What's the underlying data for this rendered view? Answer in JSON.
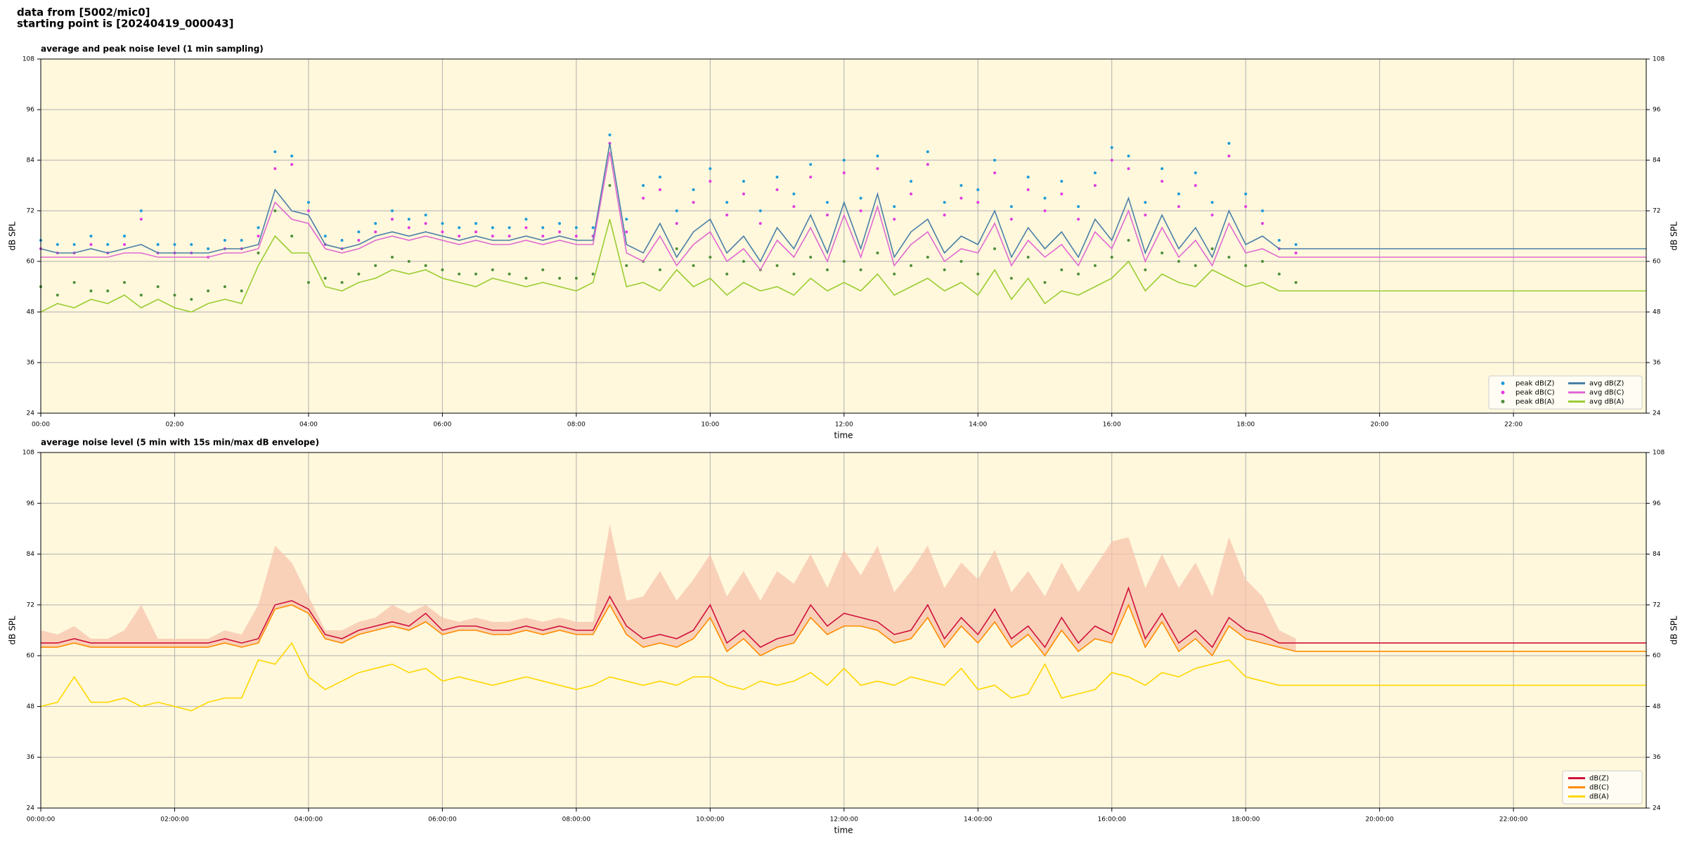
{
  "header": {
    "lines": [
      "data from [5002/mic0]",
      "starting point is [20240419_000043]"
    ]
  },
  "chart_data": [
    {
      "type": "line",
      "title": "average and peak noise level (1 min sampling)",
      "xlabel": "time",
      "ylabel": "dB SPL",
      "xlim": [
        "00:00",
        "23:59"
      ],
      "xticks": [
        "00:00",
        "02:00",
        "04:00",
        "06:00",
        "08:00",
        "10:00",
        "12:00",
        "14:00",
        "16:00",
        "18:00",
        "20:00",
        "22:00"
      ],
      "ylim": [
        24,
        108
      ],
      "yticks": [
        24,
        36,
        48,
        60,
        72,
        84,
        96,
        108
      ],
      "grid": true,
      "legend": "lower right",
      "legend_columns": 2,
      "x": [
        "00:00",
        "00:15",
        "00:30",
        "00:45",
        "01:00",
        "01:15",
        "01:30",
        "01:45",
        "02:00",
        "02:15",
        "02:30",
        "02:45",
        "03:00",
        "03:15",
        "03:30",
        "03:45",
        "04:00",
        "04:15",
        "04:30",
        "04:45",
        "05:00",
        "05:15",
        "05:30",
        "05:45",
        "06:00",
        "06:15",
        "06:30",
        "06:45",
        "07:00",
        "07:15",
        "07:30",
        "07:45",
        "08:00",
        "08:15",
        "08:30",
        "08:45",
        "09:00",
        "09:15",
        "09:30",
        "09:45",
        "10:00",
        "10:15",
        "10:30",
        "10:45",
        "11:00",
        "11:15",
        "11:30",
        "11:45",
        "12:00",
        "12:15",
        "12:30",
        "12:45",
        "13:00",
        "13:15",
        "13:30",
        "13:45",
        "14:00",
        "14:15",
        "14:30",
        "14:45",
        "15:00",
        "15:15",
        "15:30",
        "15:45",
        "16:00",
        "16:15",
        "16:30",
        "16:45",
        "17:00",
        "17:15",
        "17:30",
        "17:45",
        "18:00",
        "18:15",
        "18:30",
        "18:45",
        "23:59"
      ],
      "series": [
        {
          "name": "peak dB(Z)",
          "mark": "dot",
          "color": "#1f9bd8",
          "values": [
            65,
            64,
            64,
            66,
            64,
            66,
            72,
            64,
            64,
            64,
            63,
            65,
            65,
            68,
            86,
            85,
            74,
            66,
            65,
            67,
            69,
            72,
            70,
            71,
            69,
            68,
            69,
            68,
            68,
            70,
            68,
            69,
            68,
            68,
            90,
            70,
            78,
            80,
            72,
            77,
            82,
            74,
            79,
            72,
            80,
            76,
            83,
            74,
            84,
            75,
            85,
            73,
            79,
            86,
            74,
            78,
            77,
            84,
            73,
            80,
            75,
            79,
            73,
            81,
            87,
            85,
            74,
            82,
            76,
            81,
            74,
            88,
            76,
            72,
            65,
            64,
            null
          ]
        },
        {
          "name": "peak dB(C)",
          "mark": "dot",
          "color": "#e03ce0",
          "values": [
            63,
            62,
            62,
            64,
            62,
            64,
            70,
            62,
            62,
            62,
            61,
            63,
            63,
            66,
            82,
            83,
            72,
            64,
            63,
            65,
            67,
            70,
            68,
            69,
            67,
            66,
            67,
            66,
            66,
            68,
            66,
            67,
            66,
            66,
            88,
            67,
            75,
            77,
            69,
            74,
            79,
            71,
            76,
            69,
            77,
            73,
            80,
            71,
            81,
            72,
            82,
            70,
            76,
            83,
            71,
            75,
            74,
            81,
            70,
            77,
            72,
            76,
            70,
            78,
            84,
            82,
            71,
            79,
            73,
            78,
            71,
            85,
            73,
            69,
            63,
            62,
            null
          ]
        },
        {
          "name": "peak dB(A)",
          "mark": "dot",
          "color": "#4f8f3a",
          "values": [
            54,
            52,
            55,
            53,
            53,
            55,
            52,
            54,
            52,
            51,
            53,
            54,
            53,
            62,
            72,
            66,
            55,
            56,
            55,
            57,
            59,
            61,
            60,
            59,
            58,
            57,
            57,
            58,
            57,
            56,
            58,
            56,
            56,
            57,
            78,
            59,
            60,
            58,
            63,
            59,
            61,
            57,
            60,
            58,
            59,
            57,
            61,
            58,
            60,
            58,
            62,
            57,
            59,
            61,
            58,
            60,
            57,
            63,
            56,
            61,
            55,
            58,
            57,
            59,
            61,
            65,
            58,
            62,
            60,
            59,
            63,
            61,
            59,
            60,
            57,
            55,
            null
          ]
        },
        {
          "name": "avg dB(Z)",
          "mark": "line",
          "color": "#4a7fa8",
          "values": [
            63,
            62,
            62,
            63,
            62,
            63,
            64,
            62,
            62,
            62,
            62,
            63,
            63,
            64,
            77,
            72,
            71,
            64,
            63,
            64,
            66,
            67,
            66,
            67,
            66,
            65,
            66,
            65,
            65,
            66,
            65,
            66,
            65,
            65,
            88,
            64,
            62,
            69,
            61,
            67,
            70,
            62,
            66,
            60,
            68,
            63,
            71,
            62,
            74,
            63,
            76,
            61,
            67,
            70,
            62,
            66,
            64,
            72,
            61,
            68,
            63,
            67,
            61,
            70,
            65,
            75,
            62,
            71,
            63,
            68,
            61,
            72,
            64,
            66,
            63,
            63,
            63
          ]
        },
        {
          "name": "avg dB(C)",
          "mark": "line",
          "color": "#e06ad2",
          "values": [
            61,
            61,
            61,
            61,
            61,
            62,
            62,
            61,
            61,
            61,
            61,
            62,
            62,
            63,
            74,
            70,
            69,
            63,
            62,
            63,
            65,
            66,
            65,
            66,
            65,
            64,
            65,
            64,
            64,
            65,
            64,
            65,
            64,
            64,
            86,
            62,
            60,
            66,
            59,
            64,
            67,
            60,
            63,
            58,
            65,
            61,
            68,
            60,
            71,
            61,
            73,
            59,
            64,
            67,
            60,
            63,
            62,
            69,
            59,
            65,
            61,
            64,
            59,
            67,
            63,
            72,
            60,
            68,
            61,
            65,
            59,
            69,
            62,
            63,
            61,
            61,
            61
          ]
        },
        {
          "name": "avg dB(A)",
          "mark": "line",
          "color": "#9acd32",
          "values": [
            48,
            50,
            49,
            51,
            50,
            52,
            49,
            51,
            49,
            48,
            50,
            51,
            50,
            59,
            66,
            62,
            62,
            54,
            53,
            55,
            56,
            58,
            57,
            58,
            56,
            55,
            54,
            56,
            55,
            54,
            55,
            54,
            53,
            55,
            70,
            54,
            55,
            53,
            58,
            54,
            56,
            52,
            55,
            53,
            54,
            52,
            56,
            53,
            55,
            53,
            57,
            52,
            54,
            56,
            53,
            55,
            52,
            58,
            51,
            56,
            50,
            53,
            52,
            54,
            56,
            60,
            53,
            57,
            55,
            54,
            58,
            56,
            54,
            55,
            53,
            53,
            53
          ]
        }
      ]
    },
    {
      "type": "line",
      "title": "average noise level (5 min with 15s min/max dB envelope)",
      "xlabel": "time",
      "ylabel": "dB SPL",
      "xlim": [
        "00:00",
        "23:59"
      ],
      "xticks": [
        "00:00:00",
        "02:00:00",
        "04:00:00",
        "06:00:00",
        "08:00:00",
        "10:00:00",
        "12:00:00",
        "14:00:00",
        "16:00:00",
        "18:00:00",
        "20:00:00",
        "22:00:00"
      ],
      "ylim": [
        24,
        108
      ],
      "yticks": [
        24,
        36,
        48,
        60,
        72,
        84,
        96,
        108
      ],
      "grid": true,
      "legend": "lower right",
      "legend_columns": 1,
      "x": [
        "00:00",
        "00:15",
        "00:30",
        "00:45",
        "01:00",
        "01:15",
        "01:30",
        "01:45",
        "02:00",
        "02:15",
        "02:30",
        "02:45",
        "03:00",
        "03:15",
        "03:30",
        "03:45",
        "04:00",
        "04:15",
        "04:30",
        "04:45",
        "05:00",
        "05:15",
        "05:30",
        "05:45",
        "06:00",
        "06:15",
        "06:30",
        "06:45",
        "07:00",
        "07:15",
        "07:30",
        "07:45",
        "08:00",
        "08:15",
        "08:30",
        "08:45",
        "09:00",
        "09:15",
        "09:30",
        "09:45",
        "10:00",
        "10:15",
        "10:30",
        "10:45",
        "11:00",
        "11:15",
        "11:30",
        "11:45",
        "12:00",
        "12:15",
        "12:30",
        "12:45",
        "13:00",
        "13:15",
        "13:30",
        "13:45",
        "14:00",
        "14:15",
        "14:30",
        "14:45",
        "15:00",
        "15:15",
        "15:30",
        "15:45",
        "16:00",
        "16:15",
        "16:30",
        "16:45",
        "17:00",
        "17:15",
        "17:30",
        "17:45",
        "18:00",
        "18:15",
        "18:30",
        "18:45",
        "23:59"
      ],
      "envelope": {
        "color": "#f7c4ae",
        "values": [
          66,
          65,
          67,
          64,
          64,
          66,
          72,
          64,
          64,
          64,
          64,
          66,
          65,
          72,
          86,
          82,
          74,
          66,
          66,
          68,
          69,
          72,
          70,
          72,
          69,
          68,
          69,
          68,
          68,
          69,
          68,
          69,
          68,
          68,
          91,
          73,
          74,
          80,
          73,
          78,
          84,
          74,
          80,
          73,
          80,
          77,
          84,
          76,
          85,
          79,
          86,
          75,
          80,
          86,
          76,
          82,
          78,
          85,
          75,
          80,
          74,
          82,
          75,
          81,
          87,
          88,
          76,
          84,
          76,
          82,
          74,
          88,
          78,
          74,
          66,
          64,
          null
        ]
      },
      "series": [
        {
          "name": "dB(Z)",
          "mark": "line",
          "color": "#d0103a",
          "values": [
            63,
            63,
            64,
            63,
            63,
            63,
            63,
            63,
            63,
            63,
            63,
            64,
            63,
            64,
            72,
            73,
            71,
            65,
            64,
            66,
            67,
            68,
            67,
            70,
            66,
            67,
            67,
            66,
            66,
            67,
            66,
            67,
            66,
            66,
            74,
            67,
            64,
            65,
            64,
            66,
            72,
            63,
            66,
            62,
            64,
            65,
            72,
            67,
            70,
            69,
            68,
            65,
            66,
            72,
            64,
            69,
            65,
            71,
            64,
            67,
            62,
            69,
            63,
            67,
            65,
            76,
            64,
            70,
            63,
            66,
            62,
            69,
            66,
            65,
            63,
            63,
            63
          ]
        },
        {
          "name": "dB(C)",
          "mark": "line",
          "color": "#ff8c00",
          "values": [
            62,
            62,
            63,
            62,
            62,
            62,
            62,
            62,
            62,
            62,
            62,
            63,
            62,
            63,
            71,
            72,
            70,
            64,
            63,
            65,
            66,
            67,
            66,
            68,
            65,
            66,
            66,
            65,
            65,
            66,
            65,
            66,
            65,
            65,
            72,
            65,
            62,
            63,
            62,
            64,
            69,
            61,
            64,
            60,
            62,
            63,
            69,
            65,
            67,
            67,
            66,
            63,
            64,
            69,
            62,
            67,
            63,
            68,
            62,
            65,
            60,
            66,
            61,
            64,
            63,
            72,
            62,
            68,
            61,
            64,
            60,
            67,
            64,
            63,
            62,
            61,
            61
          ]
        },
        {
          "name": "dB(A)",
          "mark": "line",
          "color": "#ffd700",
          "values": [
            48,
            49,
            55,
            49,
            49,
            50,
            48,
            49,
            48,
            47,
            49,
            50,
            50,
            59,
            58,
            63,
            55,
            52,
            54,
            56,
            57,
            58,
            56,
            57,
            54,
            55,
            54,
            53,
            54,
            55,
            54,
            53,
            52,
            53,
            55,
            54,
            53,
            54,
            53,
            55,
            55,
            53,
            52,
            54,
            53,
            54,
            56,
            53,
            57,
            53,
            54,
            53,
            55,
            54,
            53,
            57,
            52,
            53,
            50,
            51,
            58,
            50,
            51,
            52,
            56,
            55,
            53,
            56,
            55,
            57,
            58,
            59,
            55,
            54,
            53,
            53,
            53
          ]
        }
      ]
    }
  ]
}
